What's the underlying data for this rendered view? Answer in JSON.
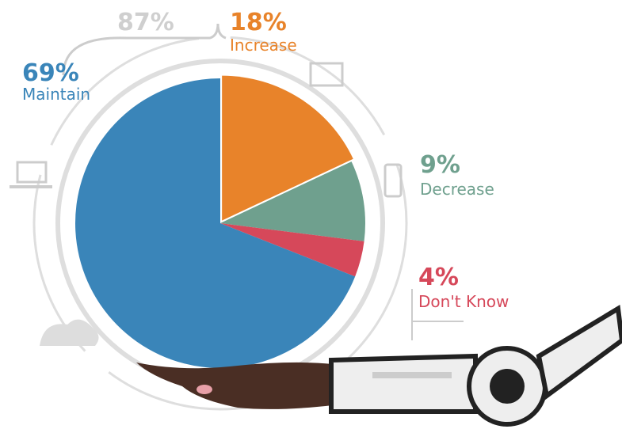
{
  "chart_data": {
    "type": "pie",
    "categories": [
      "Increase",
      "Decrease",
      "Don't Know",
      "Maintain"
    ],
    "values": [
      18,
      9,
      4,
      69
    ],
    "value_labels": [
      "18%",
      "9%",
      "4%",
      "69%"
    ],
    "colors": [
      "#e8832a",
      "#6fa08e",
      "#d6485a",
      "#3a85b9"
    ],
    "annotation": "87%"
  }
}
